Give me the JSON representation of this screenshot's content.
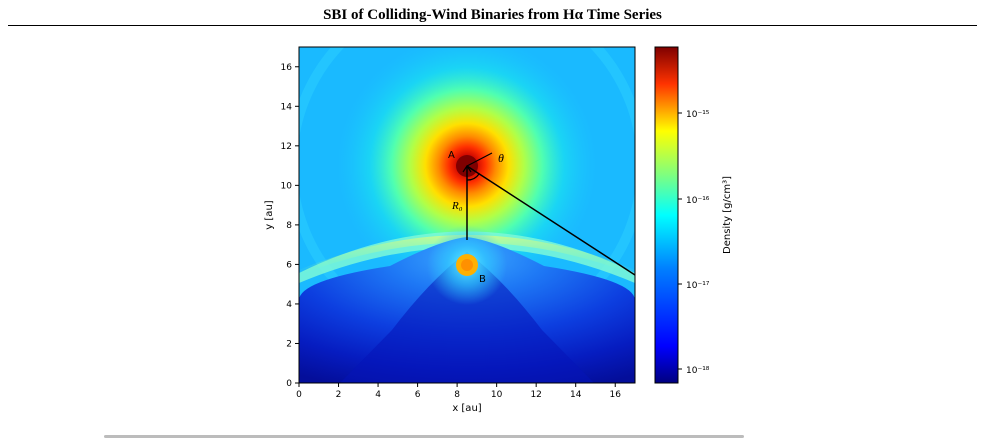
{
  "header": {
    "title": "SBI of Colliding-Wind Binaries from Hα Time Series"
  },
  "figure": {
    "labels": {
      "star_a": "A",
      "star_b": "B",
      "theta": "θ",
      "r0": "R₀"
    },
    "colorbar": {
      "label": "Density [g/cm³]",
      "ticks": [
        "10⁻¹⁵",
        "10⁻¹⁶",
        "10⁻¹⁷",
        "10⁻¹⁸"
      ]
    },
    "colors": {
      "max": "#7f0000",
      "min": "#00007f"
    }
  },
  "chart_data": {
    "type": "heatmap",
    "title": "",
    "xlabel": "x [au]",
    "ylabel": "y [au]",
    "xlim": [
      0,
      17
    ],
    "ylim": [
      0,
      17
    ],
    "xticks": [
      0,
      2,
      4,
      6,
      8,
      10,
      12,
      14,
      16
    ],
    "yticks": [
      0,
      2,
      4,
      6,
      8,
      10,
      12,
      14,
      16
    ],
    "colorscale": "jet",
    "color_scale": "log",
    "color_range": [
      7e-19,
      5.5e-15
    ],
    "stars": [
      {
        "name": "A",
        "x": 8.5,
        "y": 11.0
      },
      {
        "name": "B",
        "x": 8.5,
        "y": 6.0
      }
    ],
    "annotations": [
      "A",
      "B",
      "θ",
      "R₀"
    ]
  }
}
